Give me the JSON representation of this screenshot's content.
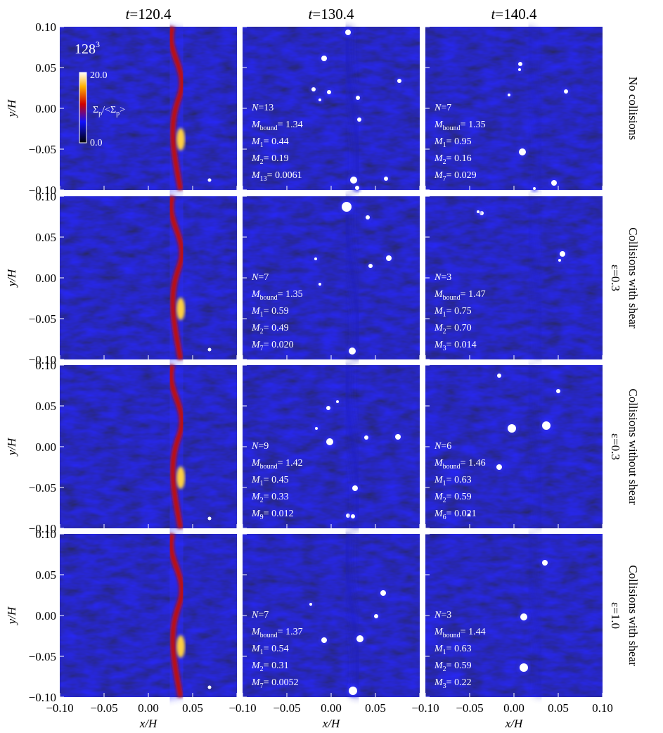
{
  "figure": {
    "column_titles": [
      {
        "main": "t",
        "rest": "=120.4"
      },
      {
        "main": "t",
        "rest": "=130.4"
      },
      {
        "main": "t",
        "rest": "=140.4"
      }
    ],
    "resolution": {
      "main": "128",
      "sup": "3"
    },
    "colorbar": {
      "max": "20.0",
      "min": "0.0",
      "label": [
        {
          "text": "Σ"
        },
        {
          "text": "p",
          "sub": true
        },
        {
          "text": "/<Σ"
        },
        {
          "text": "p",
          "sub": true
        },
        {
          "text": ">"
        }
      ]
    },
    "x_label": "x/H",
    "y_label": "y/H",
    "xlim": [
      -0.1,
      0.1
    ],
    "ylim": [
      -0.1,
      0.1
    ],
    "xticks": [
      {
        "value": -0.1,
        "label": "−0.10"
      },
      {
        "value": -0.05,
        "label": "−0.05"
      },
      {
        "value": 0,
        "label": "0.00"
      },
      {
        "value": 0.05,
        "label": "0.05"
      },
      {
        "value": 0.1,
        "label": "0.10"
      }
    ],
    "yticks": [
      {
        "value": 0.1,
        "label": "0.10"
      },
      {
        "value": 0.05,
        "label": "0.05"
      },
      {
        "value": 0,
        "label": "0.00"
      },
      {
        "value": -0.05,
        "label": "−0.05"
      },
      {
        "value": -0.1,
        "label": "−0.10"
      }
    ],
    "rows": [
      {
        "label": [
          "No collisions"
        ],
        "annotations": [
          [
            {
              "main": "N",
              "rest": "=13"
            },
            {
              "main": "M",
              "sub": "bound",
              "rest": "= 1.34"
            },
            {
              "main": "M",
              "sub": "1",
              "rest": "= 0.44"
            },
            {
              "main": "M",
              "sub": "2",
              "rest": "= 0.19"
            },
            {
              "main": "M",
              "sub": "13",
              "rest": "= 0.0061"
            }
          ],
          [
            {
              "main": "N",
              "rest": "=7"
            },
            {
              "main": "M",
              "sub": "bound",
              "rest": "= 1.35"
            },
            {
              "main": "M",
              "sub": "1",
              "rest": "= 0.95"
            },
            {
              "main": "M",
              "sub": "2",
              "rest": "= 0.16"
            },
            {
              "main": "M",
              "sub": "7",
              "rest": "= 0.029"
            }
          ]
        ]
      },
      {
        "label": [
          "Collisions with shear",
          "ε=0.3"
        ],
        "annotations": [
          [
            {
              "main": "N",
              "rest": "=7"
            },
            {
              "main": "M",
              "sub": "bound",
              "rest": "= 1.35"
            },
            {
              "main": "M",
              "sub": "1",
              "rest": "= 0.59"
            },
            {
              "main": "M",
              "sub": "2",
              "rest": "= 0.49"
            },
            {
              "main": "M",
              "sub": "7",
              "rest": "= 0.020"
            }
          ],
          [
            {
              "main": "N",
              "rest": "=3"
            },
            {
              "main": "M",
              "sub": "bound",
              "rest": "= 1.47"
            },
            {
              "main": "M",
              "sub": "1",
              "rest": "= 0.75"
            },
            {
              "main": "M",
              "sub": "2",
              "rest": "= 0.70"
            },
            {
              "main": "M",
              "sub": "3",
              "rest": "= 0.014"
            }
          ]
        ]
      },
      {
        "label": [
          "Collisions without shear",
          "ε=0.3"
        ],
        "annotations": [
          [
            {
              "main": "N",
              "rest": "=9"
            },
            {
              "main": "M",
              "sub": "bound",
              "rest": "= 1.42"
            },
            {
              "main": "M",
              "sub": "1",
              "rest": "= 0.45"
            },
            {
              "main": "M",
              "sub": "2",
              "rest": "= 0.33"
            },
            {
              "main": "M",
              "sub": "9",
              "rest": "= 0.012"
            }
          ],
          [
            {
              "main": "N",
              "rest": "=6"
            },
            {
              "main": "M",
              "sub": "bound",
              "rest": "= 1.46"
            },
            {
              "main": "M",
              "sub": "1",
              "rest": "= 0.63"
            },
            {
              "main": "M",
              "sub": "2",
              "rest": "= 0.59"
            },
            {
              "main": "M",
              "sub": "6",
              "rest": "= 0.021"
            }
          ]
        ]
      },
      {
        "label": [
          "Collisions with shear",
          "ε=1.0"
        ],
        "annotations": [
          [
            {
              "main": "N",
              "rest": "=7"
            },
            {
              "main": "M",
              "sub": "bound",
              "rest": "= 1.37"
            },
            {
              "main": "M",
              "sub": "1",
              "rest": "= 0.54"
            },
            {
              "main": "M",
              "sub": "2",
              "rest": "= 0.31"
            },
            {
              "main": "M",
              "sub": "7",
              "rest": "= 0.0052"
            }
          ],
          [
            {
              "main": "N",
              "rest": "=3"
            },
            {
              "main": "M",
              "sub": "bound",
              "rest": "= 1.44"
            },
            {
              "main": "M",
              "sub": "1",
              "rest": "= 0.63"
            },
            {
              "main": "M",
              "sub": "2",
              "rest": "= 0.59"
            },
            {
              "main": "M",
              "sub": "3",
              "rest": "= 0.22"
            }
          ]
        ]
      }
    ]
  }
}
